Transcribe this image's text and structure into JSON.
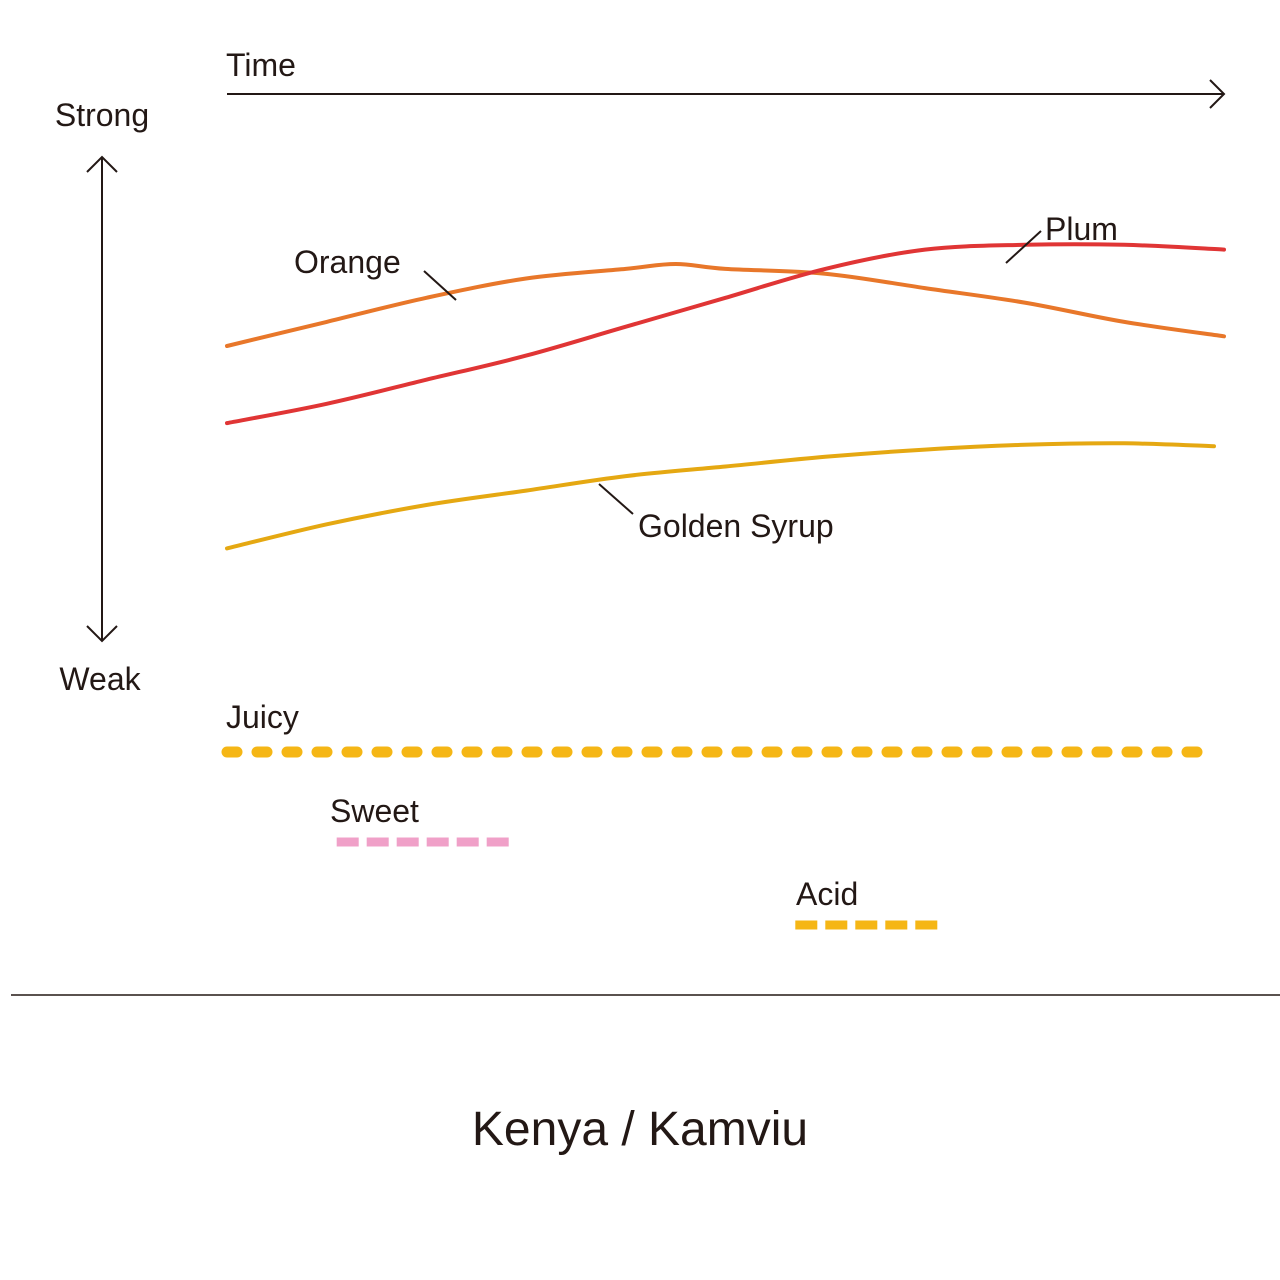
{
  "chart_data": {
    "type": "line",
    "title": "Kenya / Kamviu",
    "xlabel": "Time",
    "ylabel_top": "Strong",
    "ylabel_bottom": "Weak",
    "x_range": [
      0,
      100
    ],
    "y_range": [
      0,
      100
    ],
    "series": [
      {
        "name": "Orange",
        "color": "#e8772a",
        "x": [
          0,
          10,
          20,
          30,
          40,
          45,
          50,
          60,
          70,
          80,
          90,
          100
        ],
        "y": [
          61,
          66,
          71,
          75,
          77,
          78,
          77,
          76,
          73,
          70,
          66,
          63
        ]
      },
      {
        "name": "Plum",
        "color": "#e03535",
        "x": [
          0,
          10,
          20,
          30,
          40,
          50,
          60,
          70,
          80,
          90,
          100
        ],
        "y": [
          45,
          49,
          54,
          59,
          65,
          71,
          77,
          81,
          82,
          82,
          81
        ]
      },
      {
        "name": "Golden Syrup",
        "color": "#e5a812",
        "x": [
          0,
          10,
          20,
          30,
          40,
          50,
          60,
          70,
          80,
          90,
          99
        ],
        "y": [
          19,
          24,
          28,
          31,
          34,
          36,
          38,
          39.5,
          40.5,
          40.8,
          40.2
        ]
      }
    ],
    "attributes": [
      {
        "name": "Juicy",
        "color": "#f5b615",
        "start": 0,
        "end": 99
      },
      {
        "name": "Sweet",
        "color": "#f0a0c8",
        "start": 11,
        "end": 29
      },
      {
        "name": "Acid",
        "color": "#f5b615",
        "start": 57,
        "end": 72
      }
    ]
  }
}
